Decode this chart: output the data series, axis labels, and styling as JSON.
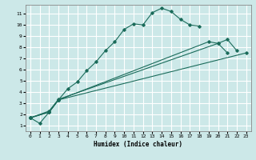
{
  "xlabel": "Humidex (Indice chaleur)",
  "background_color": "#cce8e8",
  "grid_color": "#ffffff",
  "line_color": "#1a6b5a",
  "xlim": [
    -0.5,
    23.5
  ],
  "ylim": [
    0.5,
    11.8
  ],
  "xticks": [
    0,
    1,
    2,
    3,
    4,
    5,
    6,
    7,
    8,
    9,
    10,
    11,
    12,
    13,
    14,
    15,
    16,
    17,
    18,
    19,
    20,
    21,
    22,
    23
  ],
  "yticks": [
    1,
    2,
    3,
    4,
    5,
    6,
    7,
    8,
    9,
    10,
    11
  ],
  "lines_clean": [
    {
      "x": [
        0,
        1,
        2,
        3,
        4,
        5,
        6,
        7,
        8,
        9,
        10,
        11,
        12,
        13,
        14,
        15,
        16,
        17,
        18
      ],
      "y": [
        1.7,
        1.2,
        2.2,
        3.3,
        4.3,
        4.9,
        5.9,
        6.7,
        7.7,
        8.5,
        9.6,
        10.1,
        10.0,
        11.1,
        11.5,
        11.2,
        10.5,
        10.0,
        9.9
      ]
    },
    {
      "x": [
        0,
        2,
        3,
        19,
        20,
        21
      ],
      "y": [
        1.7,
        2.2,
        3.3,
        8.5,
        8.35,
        7.5
      ]
    },
    {
      "x": [
        0,
        2,
        3,
        20,
        21,
        22
      ],
      "y": [
        1.7,
        2.3,
        3.35,
        8.35,
        8.7,
        7.7
      ]
    },
    {
      "x": [
        0,
        2,
        3,
        23
      ],
      "y": [
        1.7,
        2.2,
        3.3,
        7.5
      ]
    }
  ]
}
